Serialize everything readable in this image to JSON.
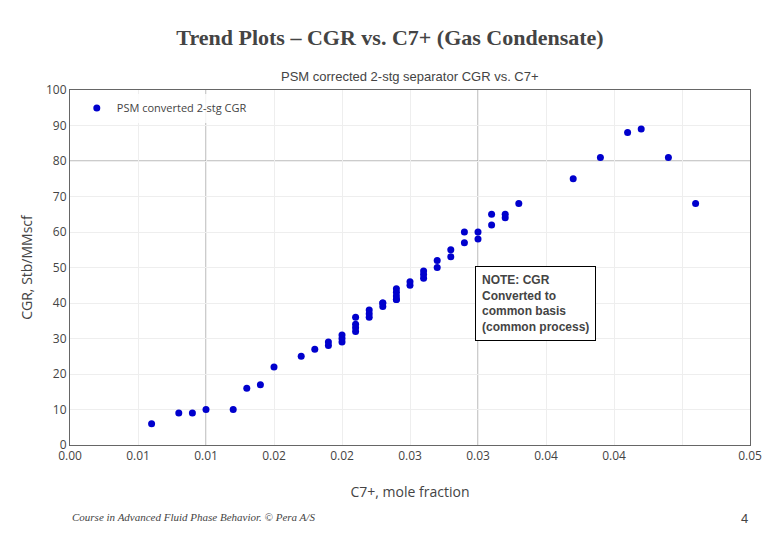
{
  "chart_data": {
    "type": "scatter",
    "title": "Trend Plots – CGR vs. C7+ (Gas Condensate)",
    "subtitle": "PSM corrected 2-stg separator CGR vs. C7+",
    "xlabel": "C7+, mole fraction",
    "ylabel": "CGR, Stb/MMscf",
    "note": "NOTE: CGR\nConverted to\ncommon basis\n(common process)",
    "footer": "Course in Advanced Fluid Phase Behavior. © Pera A/S",
    "page_number": "4",
    "x": [
      0.006,
      0.008,
      0.009,
      0.01,
      0.012,
      0.013,
      0.014,
      0.015,
      0.017,
      0.018,
      0.019,
      0.019,
      0.02,
      0.02,
      0.02,
      0.021,
      0.021,
      0.021,
      0.021,
      0.022,
      0.022,
      0.022,
      0.023,
      0.023,
      0.023,
      0.024,
      0.024,
      0.024,
      0.024,
      0.025,
      0.025,
      0.026,
      0.026,
      0.026,
      0.027,
      0.027,
      0.028,
      0.028,
      0.029,
      0.029,
      0.03,
      0.03,
      0.031,
      0.031,
      0.032,
      0.032,
      0.033,
      0.024,
      0.037,
      0.039,
      0.041,
      0.042,
      0.044,
      0.046
    ],
    "series": [
      {
        "name": "PSM converted 2-stg CGR",
        "color": "#0000CD",
        "values": [
          6,
          9,
          9,
          10,
          10,
          16,
          17,
          22,
          25,
          27,
          28,
          29,
          29,
          30,
          31,
          32,
          33,
          34,
          36,
          36,
          37,
          38,
          39,
          40,
          40,
          41,
          42,
          43,
          44,
          45,
          46,
          47,
          48,
          49,
          50,
          52,
          53,
          55,
          57,
          60,
          58,
          60,
          62,
          65,
          64,
          65,
          68,
          41,
          75,
          81,
          88,
          89,
          81,
          68
        ]
      }
    ],
    "xlim": [
      0.0,
      0.05
    ],
    "ylim": [
      0,
      100
    ],
    "xticks": [
      {
        "value": 0.0,
        "label": "0.00"
      },
      {
        "value": 0.005,
        "label": "0.01"
      },
      0.01,
      {
        "value": 0.015,
        "label": "0.02"
      },
      0.02,
      {
        "value": 0.025,
        "label": "0.03"
      },
      0.03,
      {
        "value": 0.035,
        "label": "0.04"
      },
      0.04,
      {
        "value": 0.045,
        "label": null
      },
      0.05
    ],
    "yticks": [
      0,
      10,
      20,
      30,
      40,
      50,
      60,
      70,
      80,
      90,
      100
    ],
    "vlines": [
      0.01,
      0.03
    ],
    "hlines": [
      80
    ],
    "grid": true,
    "legend": "upper left"
  }
}
